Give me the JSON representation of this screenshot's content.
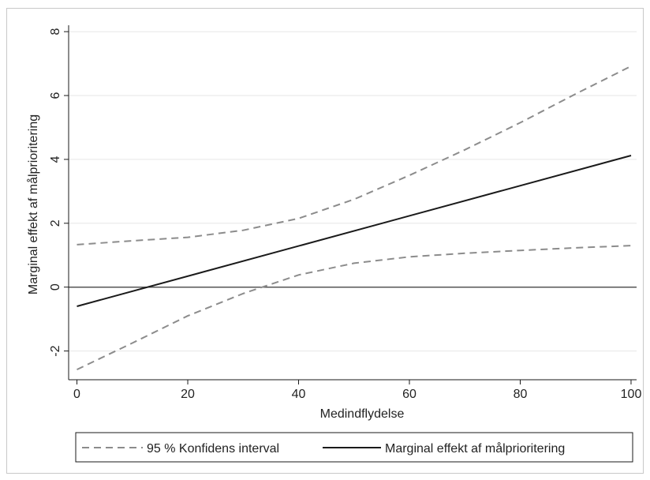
{
  "chart_data": {
    "type": "line",
    "title": "",
    "xlabel": "Medindflydelse",
    "ylabel": "Marginal effekt af målprioritering",
    "xlim": [
      -1.5,
      101
    ],
    "ylim": [
      -2.9,
      8.2
    ],
    "x_ticks": [
      0,
      20,
      40,
      60,
      80,
      100
    ],
    "y_ticks": [
      -2,
      0,
      2,
      4,
      6,
      8
    ],
    "grid": true,
    "reference_line_y": 0,
    "legend_position": "bottom",
    "series": [
      {
        "name": "95 % Konfidens interval",
        "style": "dashed",
        "color": "#8c8c8c",
        "x": [
          0,
          10,
          20,
          30,
          40,
          50,
          60,
          70,
          80,
          90,
          100
        ],
        "y": [
          1.33,
          1.45,
          1.56,
          1.78,
          2.15,
          2.75,
          3.5,
          4.3,
          5.15,
          6.05,
          6.92
        ]
      },
      {
        "name": "",
        "style": "dashed",
        "color": "#8c8c8c",
        "x": [
          0,
          10,
          20,
          30,
          40,
          50,
          60,
          70,
          80,
          90,
          100
        ],
        "y": [
          -2.58,
          -1.75,
          -0.9,
          -0.2,
          0.38,
          0.75,
          0.95,
          1.06,
          1.15,
          1.23,
          1.3
        ]
      },
      {
        "name": "Marginal effekt af målprioritering",
        "style": "solid",
        "color": "#1a1a1a",
        "x": [
          0,
          100
        ],
        "y": [
          -0.6,
          4.12
        ]
      }
    ]
  }
}
